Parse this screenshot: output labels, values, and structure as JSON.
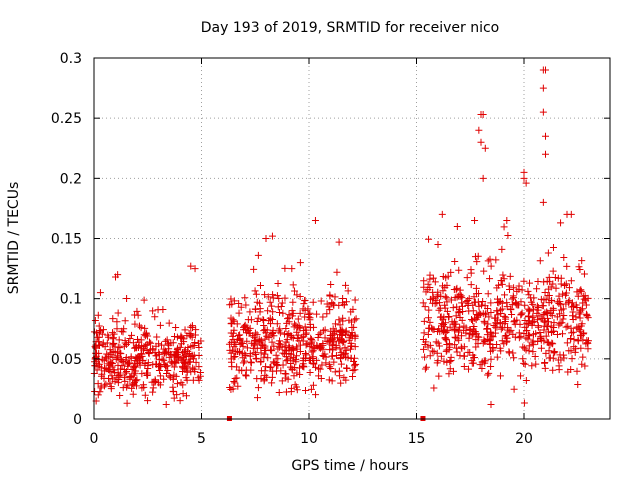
{
  "chart_data": {
    "type": "scatter",
    "title": "Day 193 of 2019, SRMTID for receiver nico",
    "xlabel": "GPS time / hours",
    "ylabel": "SRMTID / TECUs",
    "xlim": [
      0,
      24
    ],
    "ylim": [
      0,
      0.3
    ],
    "xticks": [
      "0",
      "5",
      "10",
      "15",
      "20"
    ],
    "yticks": [
      "0",
      "0.05",
      "0.1",
      "0.15",
      "0.2",
      "0.25",
      "0.3"
    ],
    "grid": true,
    "marker": "+",
    "color": "#e00000",
    "segments": [
      {
        "start": 0.0,
        "end": 5.0,
        "base": 0.05,
        "spread": 0.015,
        "count": 420
      },
      {
        "start": 6.3,
        "end": 12.2,
        "base": 0.063,
        "spread": 0.018,
        "count": 520
      },
      {
        "start": 15.3,
        "end": 23.0,
        "base": 0.08,
        "spread": 0.022,
        "count": 640
      }
    ],
    "gap_markers": [
      6.3,
      15.3
    ],
    "highlights": [
      [
        0.1,
        0.015
      ],
      [
        0.2,
        0.02
      ],
      [
        0.3,
        0.105
      ],
      [
        1.0,
        0.118
      ],
      [
        1.1,
        0.12
      ],
      [
        4.5,
        0.127
      ],
      [
        4.7,
        0.125
      ],
      [
        8.0,
        0.15
      ],
      [
        8.3,
        0.152
      ],
      [
        9.2,
        0.125
      ],
      [
        9.6,
        0.13
      ],
      [
        10.3,
        0.165
      ],
      [
        11.3,
        0.122
      ],
      [
        16.2,
        0.17
      ],
      [
        16.0,
        0.145
      ],
      [
        17.7,
        0.165
      ],
      [
        17.9,
        0.24
      ],
      [
        18.0,
        0.253
      ],
      [
        18.1,
        0.253
      ],
      [
        18.0,
        0.23
      ],
      [
        18.2,
        0.225
      ],
      [
        18.1,
        0.2
      ],
      [
        19.2,
        0.165
      ],
      [
        20.0,
        0.2
      ],
      [
        20.0,
        0.205
      ],
      [
        20.1,
        0.196
      ],
      [
        20.9,
        0.29
      ],
      [
        21.0,
        0.29
      ],
      [
        20.9,
        0.275
      ],
      [
        20.9,
        0.255
      ],
      [
        21.0,
        0.235
      ],
      [
        21.0,
        0.22
      ],
      [
        20.9,
        0.18
      ],
      [
        22.0,
        0.17
      ],
      [
        22.2,
        0.17
      ],
      [
        21.7,
        0.163
      ],
      [
        23.0,
        0.065
      ],
      [
        16.9,
        0.16
      ]
    ]
  }
}
